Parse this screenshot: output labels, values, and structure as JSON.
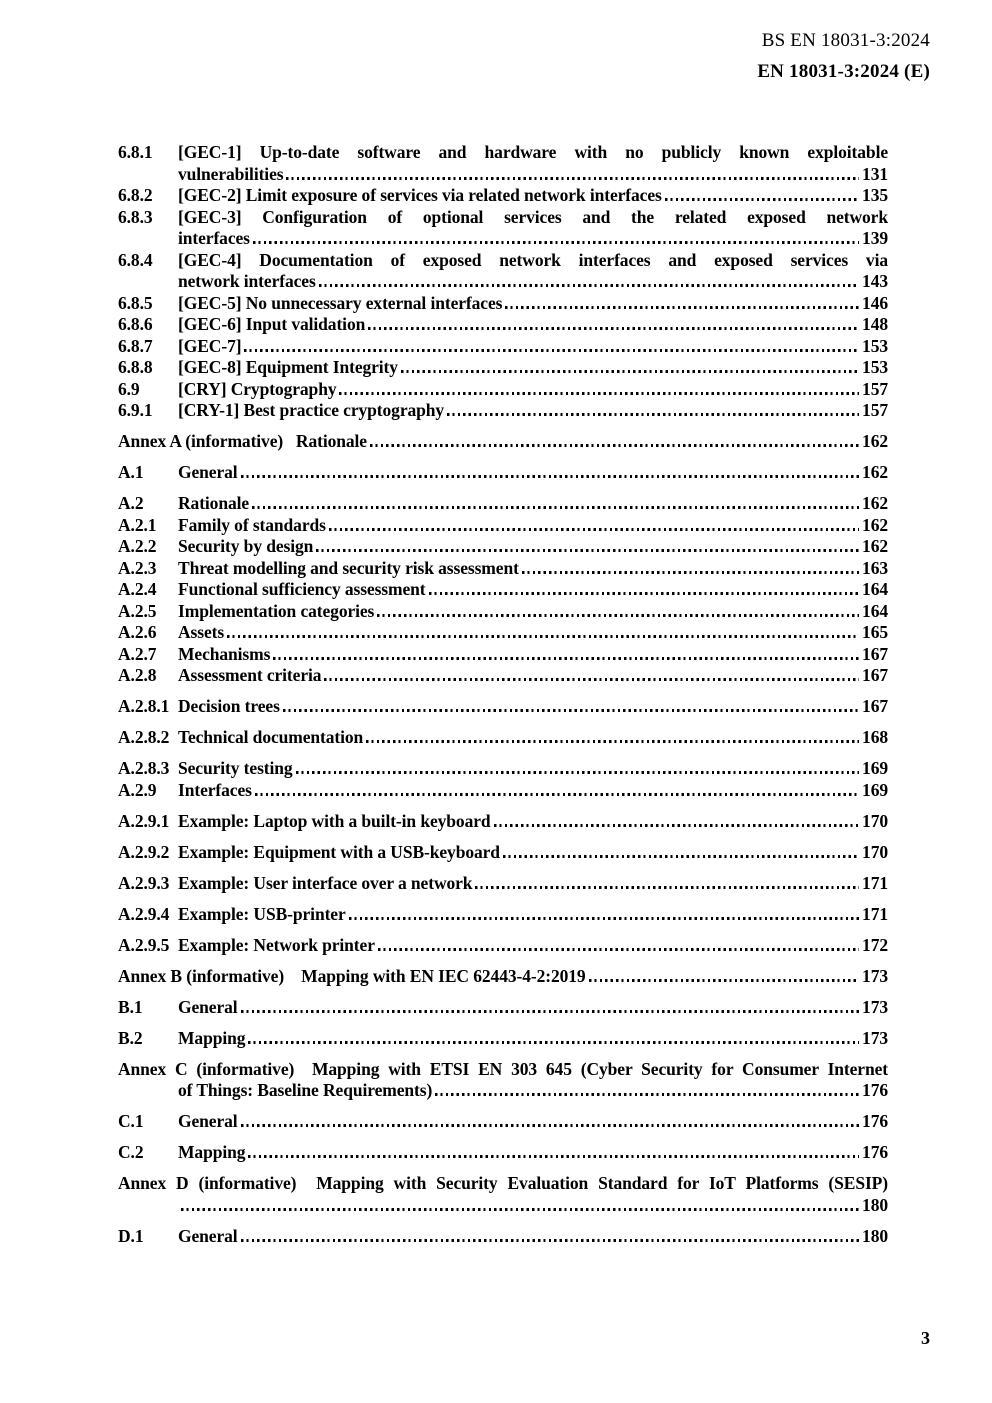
{
  "colors": {
    "text": "#000000",
    "background": "#ffffff"
  },
  "header": {
    "line1": "BS EN 18031-3:2024",
    "line2": "EN 18031-3:2024 (E)"
  },
  "footer": {
    "page_number": "3"
  },
  "toc": {
    "entries": [
      {
        "num": "6.8.1",
        "pre": [
          "[GEC-1] Up-to-date software and hardware with no publicly known exploitable"
        ],
        "end": "vulnerabilities",
        "page": "131",
        "spaced": false
      },
      {
        "num": "6.8.2",
        "pre": [],
        "end": "[GEC-2] Limit exposure of services via related network interfaces",
        "page": "135",
        "spaced": false
      },
      {
        "num": "6.8.3",
        "pre": [
          "[GEC-3] Configuration of optional services and the related exposed network"
        ],
        "end": "interfaces",
        "page": "139",
        "spaced": false
      },
      {
        "num": "6.8.4",
        "pre": [
          "[GEC-4] Documentation of exposed network interfaces and exposed services via"
        ],
        "end": "network interfaces",
        "page": "143",
        "spaced": false
      },
      {
        "num": "6.8.5",
        "pre": [],
        "end": "[GEC-5] No unnecessary external interfaces",
        "page": "146",
        "spaced": false
      },
      {
        "num": "6.8.6",
        "pre": [],
        "end": "[GEC-6] Input validation",
        "page": "148",
        "spaced": false
      },
      {
        "num": "6.8.7",
        "pre": [],
        "end": "[GEC-7]",
        "page": "153",
        "spaced": false
      },
      {
        "num": "6.8.8",
        "pre": [],
        "end": "[GEC-8] Equipment Integrity",
        "page": "153",
        "spaced": false
      },
      {
        "num": "6.9",
        "pre": [],
        "end": "[CRY] Cryptography",
        "page": "157",
        "spaced": false
      },
      {
        "num": "6.9.1",
        "pre": [],
        "end": "[CRY-1] Best practice cryptography",
        "page": "157",
        "spaced": false
      },
      {
        "num": "",
        "pre": [],
        "end": "Annex A (informative)   Rationale",
        "page": "162",
        "spaced": true
      },
      {
        "num": "A.1",
        "pre": [],
        "end": "General",
        "page": "162",
        "spaced": true
      },
      {
        "num": "A.2",
        "pre": [],
        "end": "Rationale",
        "page": "162",
        "spaced": true
      },
      {
        "num": "A.2.1",
        "pre": [],
        "end": "Family of standards",
        "page": "162",
        "spaced": false
      },
      {
        "num": "A.2.2",
        "pre": [],
        "end": "Security by design",
        "page": "162",
        "spaced": false
      },
      {
        "num": "A.2.3",
        "pre": [],
        "end": "Threat modelling and security risk assessment",
        "page": "163",
        "spaced": false
      },
      {
        "num": "A.2.4",
        "pre": [],
        "end": "Functional sufficiency assessment",
        "page": "164",
        "spaced": false
      },
      {
        "num": "A.2.5",
        "pre": [],
        "end": "Implementation categories",
        "page": "164",
        "spaced": false
      },
      {
        "num": "A.2.6",
        "pre": [],
        "end": "Assets",
        "page": "165",
        "spaced": false
      },
      {
        "num": "A.2.7",
        "pre": [],
        "end": "Mechanisms",
        "page": "167",
        "spaced": false
      },
      {
        "num": "A.2.8",
        "pre": [],
        "end": "Assessment criteria",
        "page": "167",
        "spaced": false
      },
      {
        "num": "A.2.8.1",
        "pre": [],
        "end": "Decision trees",
        "page": "167",
        "spaced": true
      },
      {
        "num": "A.2.8.2",
        "pre": [],
        "end": "Technical documentation",
        "page": "168",
        "spaced": true
      },
      {
        "num": "A.2.8.3",
        "pre": [],
        "end": "Security testing",
        "page": "169",
        "spaced": true
      },
      {
        "num": "A.2.9",
        "pre": [],
        "end": "Interfaces",
        "page": "169",
        "spaced": false
      },
      {
        "num": "A.2.9.1",
        "pre": [],
        "end": "Example: Laptop with a built-in keyboard",
        "page": "170",
        "spaced": true
      },
      {
        "num": "A.2.9.2",
        "pre": [],
        "end": "Example: Equipment with a USB-keyboard",
        "page": "170",
        "spaced": true
      },
      {
        "num": "A.2.9.3",
        "pre": [],
        "end": "Example: User interface over a network",
        "page": "171",
        "spaced": true
      },
      {
        "num": "A.2.9.4",
        "pre": [],
        "end": "Example: USB-printer",
        "page": "171",
        "spaced": true
      },
      {
        "num": "A.2.9.5",
        "pre": [],
        "end": "Example: Network printer",
        "page": "172",
        "spaced": true
      },
      {
        "num": "",
        "pre": [],
        "end": "Annex B (informative)    Mapping with EN IEC 62443-4-2:2019",
        "page": "173",
        "spaced": true
      },
      {
        "num": "B.1",
        "pre": [],
        "end": "General",
        "page": "173",
        "spaced": true
      },
      {
        "num": "B.2",
        "pre": [],
        "end": "Mapping",
        "page": "173",
        "spaced": true
      },
      {
        "num": "",
        "pre": [
          "Annex C (informative)  Mapping with ETSI EN 303 645 (Cyber Security for Consumer Internet"
        ],
        "end": "of Things: Baseline Requirements)",
        "page": "176",
        "spaced": true
      },
      {
        "num": "C.1",
        "pre": [],
        "end": "General",
        "page": "176",
        "spaced": true
      },
      {
        "num": "C.2",
        "pre": [],
        "end": "Mapping",
        "page": "176",
        "spaced": true
      },
      {
        "num": "",
        "pre": [
          "Annex D (informative)  Mapping with Security Evaluation Standard for IoT Platforms (SESIP)"
        ],
        "end": "",
        "page": "180",
        "spaced": true
      },
      {
        "num": "D.1",
        "pre": [],
        "end": "General",
        "page": "180",
        "spaced": true
      }
    ]
  }
}
